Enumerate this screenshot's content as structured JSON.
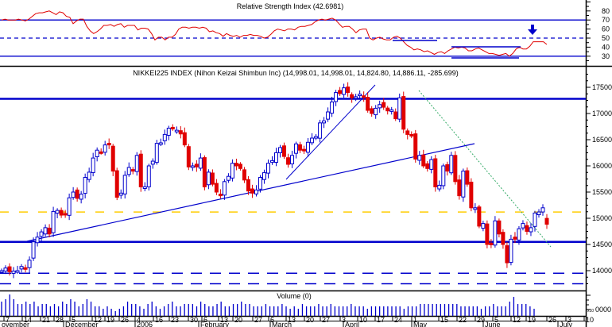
{
  "chart_data": [
    {
      "panel": "rsi",
      "type": "line",
      "title": "Relative Strength Index (42.6981)",
      "current_value": 42.6981,
      "ylim": [
        20,
        90
      ],
      "yticks": [
        30,
        40,
        50,
        60,
        70,
        80
      ],
      "reference_lines": [
        {
          "value": 70,
          "style": "solid",
          "color": "#0000CC"
        },
        {
          "value": 50,
          "style": "dashed",
          "color": "#0000CC"
        },
        {
          "value": 30,
          "style": "solid",
          "color": "#0000CC"
        }
      ],
      "series_color": "#E00000",
      "values": [
        70,
        71,
        70,
        70,
        70,
        71,
        70,
        69,
        71,
        74,
        77,
        78,
        78,
        79,
        80,
        78,
        76,
        79,
        78,
        74,
        73,
        66,
        69,
        71,
        71,
        63,
        58,
        55,
        57,
        60,
        64,
        64,
        65,
        63,
        65,
        66,
        62,
        64,
        64,
        64,
        59,
        61,
        61,
        60,
        55,
        48,
        51,
        51,
        48,
        51,
        51,
        54,
        60,
        62,
        62,
        61,
        62,
        62,
        61,
        62,
        61,
        57,
        58,
        56,
        55,
        52,
        55,
        53,
        52,
        53,
        51,
        53,
        53,
        54,
        53,
        53,
        52,
        50,
        51,
        54,
        58,
        60,
        59,
        58,
        60,
        60,
        59,
        62,
        63,
        63,
        64,
        65,
        68,
        70,
        71,
        70,
        71,
        72,
        70,
        66,
        62,
        63,
        63,
        60,
        56,
        59,
        60,
        60,
        50,
        48,
        50,
        51,
        49,
        48,
        48,
        51,
        52,
        50,
        46,
        42,
        40,
        37,
        38,
        37,
        35,
        36,
        34,
        32,
        34,
        35,
        33,
        36,
        38,
        40,
        39,
        40,
        39,
        36,
        36,
        38,
        39,
        37,
        35,
        33,
        33,
        32,
        31,
        32,
        33,
        30,
        33,
        38,
        40,
        38,
        38,
        41,
        46,
        46,
        46,
        46,
        43
      ],
      "annotations": [
        {
          "type": "arrow-down",
          "color": "#0000CC",
          "near": "latest bars above 50"
        },
        {
          "type": "support-line",
          "level": 49
        },
        {
          "type": "support-line",
          "level": 30
        },
        {
          "type": "resistance-line",
          "level": 40
        }
      ]
    },
    {
      "panel": "price",
      "type": "candlestick",
      "title": "NIKKEI225 INDEX (Nihon Keizai Shimbun Inc) (14,998.01, 14,998.01, 14,824.80, 14,886.11, -285.699)",
      "ohlc_last": {
        "open": 14998.01,
        "high": 14998.01,
        "low": 14824.8,
        "close": 14886.11,
        "change": -285.699
      },
      "ylim": [
        13700,
        17850
      ],
      "yticks": [
        14000,
        14500,
        15000,
        15500,
        16000,
        16500,
        17000,
        17500
      ],
      "up_color": "#0000CC",
      "down_color": "#E00000",
      "horizontal_lines": [
        {
          "value": 17280,
          "style": "solid",
          "color": "#0000CC"
        },
        {
          "value": 15120,
          "style": "dashed",
          "color": "#FFCC00"
        },
        {
          "value": 14550,
          "style": "solid",
          "color": "#0000CC"
        },
        {
          "value": 13950,
          "style": "dashed",
          "color": "#0000CC"
        },
        {
          "value": 13750,
          "style": "dashed",
          "color": "#0000CC"
        }
      ],
      "trend_lines": [
        {
          "name": "long-term support",
          "from": [
            "Nov 14",
            14500
          ],
          "to": [
            "May 22",
            16360
          ],
          "color": "#0000CC"
        },
        {
          "name": "march-april uptrend",
          "from": [
            "Mar 13",
            15580
          ],
          "to": [
            "Apr 10",
            17530
          ],
          "color": "#0000CC"
        },
        {
          "name": "may-june downtrend",
          "from": [
            "May 1",
            17380
          ],
          "to": [
            "Jun 26",
            14400
          ],
          "color": "#33AA66",
          "style": "dotted"
        }
      ],
      "candles_approx_close": [
        14000,
        14050,
        13980,
        13990,
        14000,
        14080,
        14050,
        14200,
        14550,
        14640,
        14740,
        14820,
        14700,
        15130,
        15150,
        15060,
        15080,
        15390,
        15500,
        15380,
        15460,
        15780,
        15880,
        16150,
        16300,
        16260,
        16400,
        16400,
        15900,
        15400,
        15480,
        15820,
        15970,
        15900,
        16200,
        15600,
        15600,
        16000,
        16090,
        16430,
        16440,
        16600,
        16720,
        16720,
        16680,
        16610,
        16400,
        15980,
        16000,
        15980,
        16150,
        15600,
        15880,
        15650,
        15500,
        15450,
        15700,
        15800,
        16050,
        16000,
        15950,
        15730,
        15520,
        15480,
        15540,
        15780,
        15870,
        16050,
        16100,
        16250,
        16350,
        16180,
        16030,
        16200,
        16420,
        16300,
        16300,
        16450,
        16530,
        16560,
        16820,
        16860,
        17030,
        17220,
        17400,
        17380,
        17490,
        17400,
        17300,
        17320,
        17370,
        17310,
        17060,
        17000,
        17100,
        17170,
        17120,
        17050,
        17070,
        16900,
        17300,
        16700,
        16600,
        16580,
        16130,
        16200,
        16000,
        15950,
        16120,
        15600,
        15630,
        16000,
        15900,
        16200,
        15700,
        15430,
        15900,
        15650,
        15200,
        15200,
        14850,
        14900,
        14500,
        14520,
        14950,
        14700,
        14500,
        14150,
        14600,
        14600,
        14800,
        14900,
        14750,
        14820,
        15100,
        15120,
        15200,
        14886
      ]
    },
    {
      "panel": "volume",
      "type": "bar",
      "title": "Volume (0)",
      "unit_label": "x10",
      "ytick_label": "0000",
      "color": "#0000CC",
      "values": [
        6,
        7,
        9,
        7,
        5,
        5,
        6,
        5,
        6,
        4,
        5,
        5,
        4,
        5,
        4,
        6,
        5,
        7,
        6,
        4,
        5,
        7,
        6,
        4,
        4,
        3,
        4,
        3,
        2,
        3,
        4,
        6,
        5,
        5,
        4,
        3,
        5,
        6,
        4,
        3,
        4,
        5,
        6,
        4,
        4,
        5,
        5,
        5,
        4,
        6,
        5,
        4,
        4,
        5,
        6,
        4,
        4,
        5,
        5,
        6,
        5,
        5,
        4,
        4,
        4,
        5,
        4,
        4,
        4,
        5,
        4,
        3,
        4,
        3,
        5,
        4,
        4,
        4,
        5,
        4,
        4,
        5,
        4,
        4,
        4,
        4,
        5,
        4,
        4,
        4,
        3,
        4,
        4,
        4,
        4,
        4,
        4,
        4,
        4,
        3,
        4,
        4,
        4,
        5,
        5,
        5,
        5,
        5,
        5,
        5,
        5,
        5,
        5,
        4,
        4,
        4,
        4,
        4,
        3,
        4,
        4,
        5,
        4,
        4,
        4,
        6,
        8,
        5,
        5,
        5,
        4,
        3
      ]
    }
  ],
  "x_axis": {
    "day_ticks": [
      "7",
      "14",
      "21",
      "28",
      "5",
      "12",
      "19",
      "26",
      "4",
      "16",
      "23",
      "30",
      "6",
      "13",
      "20",
      "27",
      "6",
      "13",
      "20",
      "27",
      "3",
      "10",
      "17",
      "24",
      "1",
      "15",
      "22",
      "29",
      "5",
      "12",
      "19",
      "26",
      "3",
      "10"
    ],
    "month_labels": [
      "ovember",
      "December",
      "2006",
      "February",
      "March",
      "April",
      "May",
      "June",
      "July"
    ]
  },
  "labels": {
    "rsi_title": "Relative Strength Index (42.6981)",
    "price_title": "NIKKEI225 INDEX (Nihon Keizai Shimbun Inc) (14,998.01, 14,998.01, 14,824.80, 14,886.11, -285.699)",
    "volume_title": "Volume (0)",
    "volume_unit": "x10",
    "volume_tick": "0000"
  }
}
